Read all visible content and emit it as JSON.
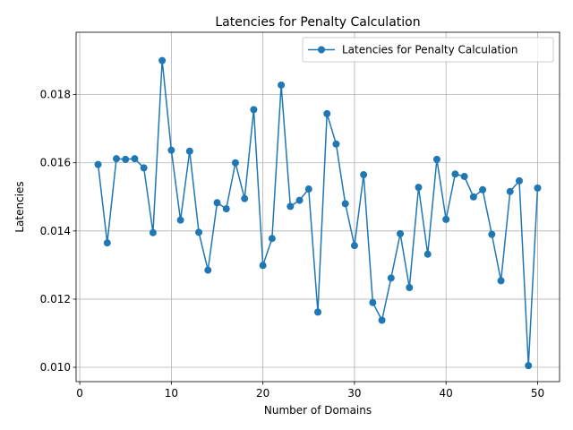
{
  "chart_data": {
    "type": "line",
    "title": "Latencies for Penalty Calculation",
    "xlabel": "Number of Domains",
    "ylabel": "Latencies",
    "xlim": [
      -0.4,
      52.4
    ],
    "ylim": [
      0.00958,
      0.01983
    ],
    "xticks": [
      0,
      10,
      20,
      30,
      40,
      50
    ],
    "xtick_labels": [
      "0",
      "10",
      "20",
      "30",
      "40",
      "50"
    ],
    "yticks": [
      0.01,
      0.012,
      0.014,
      0.016,
      0.018
    ],
    "ytick_labels": [
      "0.010",
      "0.012",
      "0.014",
      "0.016",
      "0.018"
    ],
    "grid": true,
    "legend_position": "top-right",
    "series": [
      {
        "name": "Latencies for Penalty Calculation",
        "color": "#1f77b4",
        "marker": "circle",
        "x": [
          2,
          3,
          4,
          5,
          6,
          7,
          8,
          9,
          10,
          11,
          12,
          13,
          14,
          15,
          16,
          17,
          18,
          19,
          20,
          21,
          22,
          23,
          24,
          25,
          26,
          27,
          28,
          29,
          30,
          31,
          32,
          33,
          34,
          35,
          36,
          37,
          38,
          39,
          40,
          41,
          42,
          43,
          44,
          45,
          46,
          47,
          48,
          49,
          50
        ],
        "values": [
          0.01595,
          0.01365,
          0.01612,
          0.0161,
          0.01612,
          0.01585,
          0.01395,
          0.019,
          0.01637,
          0.01432,
          0.01634,
          0.01396,
          0.01285,
          0.01483,
          0.01465,
          0.016,
          0.01495,
          0.01756,
          0.01299,
          0.01378,
          0.01828,
          0.01472,
          0.0149,
          0.01523,
          0.01162,
          0.01744,
          0.01655,
          0.0148,
          0.01357,
          0.01565,
          0.0119,
          0.01138,
          0.01262,
          0.01392,
          0.01234,
          0.01528,
          0.01332,
          0.0161,
          0.01434,
          0.01567,
          0.0156,
          0.015,
          0.01521,
          0.0139,
          0.01254,
          0.01516,
          0.01547,
          0.01005,
          0.01526
        ]
      }
    ]
  }
}
